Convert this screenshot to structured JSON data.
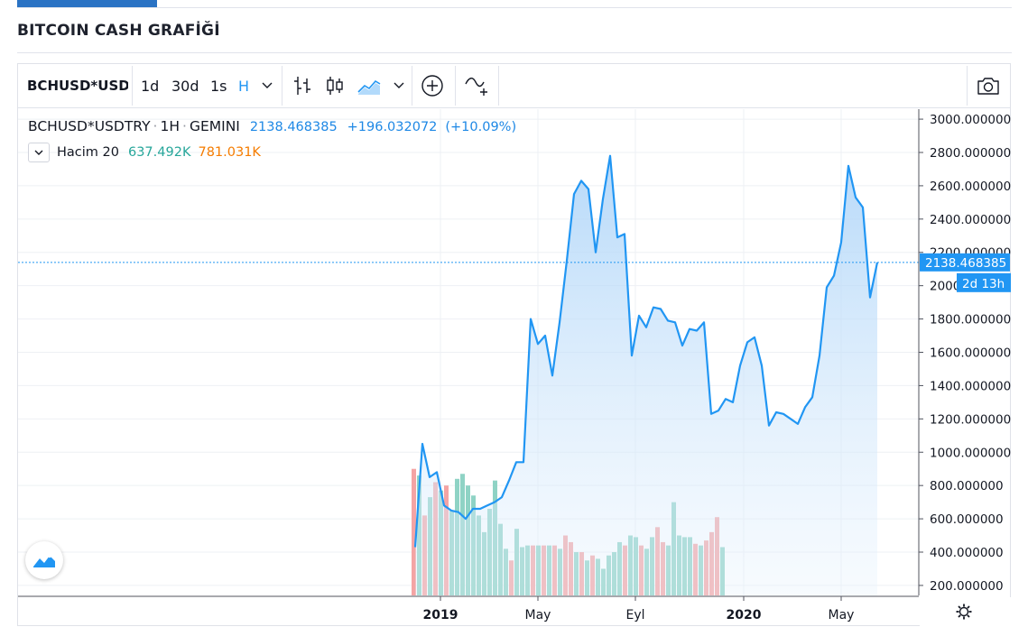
{
  "page": {
    "title": "BITCOIN CASH GRAFİĞİ"
  },
  "toolbar": {
    "symbol": "BCHUSD*USDTRY",
    "timeframes": [
      "1d",
      "30d",
      "1s"
    ],
    "interval_active": "H",
    "icons": [
      "bar-chart-icon",
      "candles-icon",
      "area-chart-icon",
      "add-compare-icon",
      "indicators-icon",
      "camera-icon"
    ]
  },
  "legend": {
    "symbol": "BCHUSD*USDTRY",
    "interval": "1H",
    "exchange": "GEMINI",
    "price": "2138.468385",
    "change": "+196.032072",
    "change_pct": "(+10.09%)",
    "volume_label": "Hacim 20",
    "volume_value_1": "637.492K",
    "volume_value_2": "781.031K"
  },
  "price_scale": {
    "last_price_label": "2138.468385",
    "countdown_label": "2d 13h"
  },
  "time_axis": {
    "gear_icon": "settings-icon"
  },
  "colors": {
    "line": "#2196f3",
    "area_top": "#a9d2f8",
    "volume_up": "#8fd3c5",
    "volume_down": "#f4a4a4",
    "last_price_bg": "#2196f3"
  },
  "chart_data": {
    "type": "area",
    "y_axis": {
      "ticks": [
        "3000.000000",
        "2800.000000",
        "2600.000000",
        "2400.000000",
        "2200.000000",
        "2000.000000",
        "1800.000000",
        "1600.000000",
        "1400.000000",
        "1200.000000",
        "1000.000000",
        "800.000000",
        "600.000000",
        "400.000000",
        "200.000000"
      ],
      "range": [
        140,
        3060
      ]
    },
    "x_axis": {
      "ticks": [
        {
          "label": "2019",
          "bold": true,
          "t": 3.5
        },
        {
          "label": "May",
          "bold": false,
          "t": 17
        },
        {
          "label": "Eyl",
          "bold": false,
          "t": 30.5
        },
        {
          "label": "2020",
          "bold": true,
          "t": 45.5
        },
        {
          "label": "May",
          "bold": false,
          "t": 59
        }
      ]
    },
    "series": [
      {
        "values": [
          430,
          1050,
          850,
          880,
          680,
          650,
          640,
          600,
          660,
          660,
          680,
          700,
          730,
          830,
          940,
          940,
          1800,
          1650,
          1700,
          1460,
          1780,
          2150,
          2550,
          2630,
          2580,
          2200,
          2520,
          2780,
          2290,
          2310,
          1580,
          1820,
          1750,
          1870,
          1860,
          1790,
          1780,
          1640,
          1740,
          1730,
          1780,
          1230,
          1250,
          1320,
          1300,
          1520,
          1660,
          1690,
          1520,
          1160,
          1240,
          1230,
          1200,
          1170,
          1270,
          1330,
          1580,
          1990,
          2060,
          2260,
          2720,
          2530,
          2470,
          1930,
          2140
        ]
      }
    ],
    "volume": {
      "label": "Hacim 20",
      "bars": [
        {
          "v": 900,
          "up": false
        },
        {
          "v": 860,
          "up": true
        },
        {
          "v": 620,
          "up": false
        },
        {
          "v": 730,
          "up": true
        },
        {
          "v": 820,
          "up": false
        },
        {
          "v": 770,
          "up": true
        },
        {
          "v": 800,
          "up": false
        },
        {
          "v": 650,
          "up": true
        },
        {
          "v": 840,
          "up": true
        },
        {
          "v": 870,
          "up": true
        },
        {
          "v": 800,
          "up": true
        },
        {
          "v": 740,
          "up": true
        },
        {
          "v": 620,
          "up": true
        },
        {
          "v": 520,
          "up": true
        },
        {
          "v": 660,
          "up": true
        },
        {
          "v": 830,
          "up": true
        },
        {
          "v": 570,
          "up": true
        },
        {
          "v": 420,
          "up": true
        },
        {
          "v": 350,
          "up": false
        },
        {
          "v": 540,
          "up": true
        },
        {
          "v": 430,
          "up": true
        },
        {
          "v": 440,
          "up": true
        },
        {
          "v": 440,
          "up": false
        },
        {
          "v": 440,
          "up": true
        },
        {
          "v": 440,
          "up": false
        },
        {
          "v": 440,
          "up": true
        },
        {
          "v": 440,
          "up": false
        },
        {
          "v": 420,
          "up": true
        },
        {
          "v": 500,
          "up": false
        },
        {
          "v": 460,
          "up": false
        },
        {
          "v": 400,
          "up": true
        },
        {
          "v": 400,
          "up": false
        },
        {
          "v": 350,
          "up": true
        },
        {
          "v": 380,
          "up": false
        },
        {
          "v": 360,
          "up": true
        },
        {
          "v": 300,
          "up": true
        },
        {
          "v": 380,
          "up": true
        },
        {
          "v": 400,
          "up": true
        },
        {
          "v": 460,
          "up": true
        },
        {
          "v": 440,
          "up": false
        },
        {
          "v": 500,
          "up": true
        },
        {
          "v": 490,
          "up": true
        },
        {
          "v": 440,
          "up": false
        },
        {
          "v": 420,
          "up": true
        },
        {
          "v": 490,
          "up": true
        },
        {
          "v": 550,
          "up": false
        },
        {
          "v": 460,
          "up": false
        },
        {
          "v": 440,
          "up": true
        },
        {
          "v": 700,
          "up": true
        },
        {
          "v": 500,
          "up": true
        },
        {
          "v": 490,
          "up": true
        },
        {
          "v": 490,
          "up": true
        },
        {
          "v": 450,
          "up": false
        },
        {
          "v": 440,
          "up": true
        },
        {
          "v": 470,
          "up": false
        },
        {
          "v": 520,
          "up": false
        },
        {
          "v": 610,
          "up": false
        },
        {
          "v": 430,
          "up": true
        }
      ]
    }
  }
}
